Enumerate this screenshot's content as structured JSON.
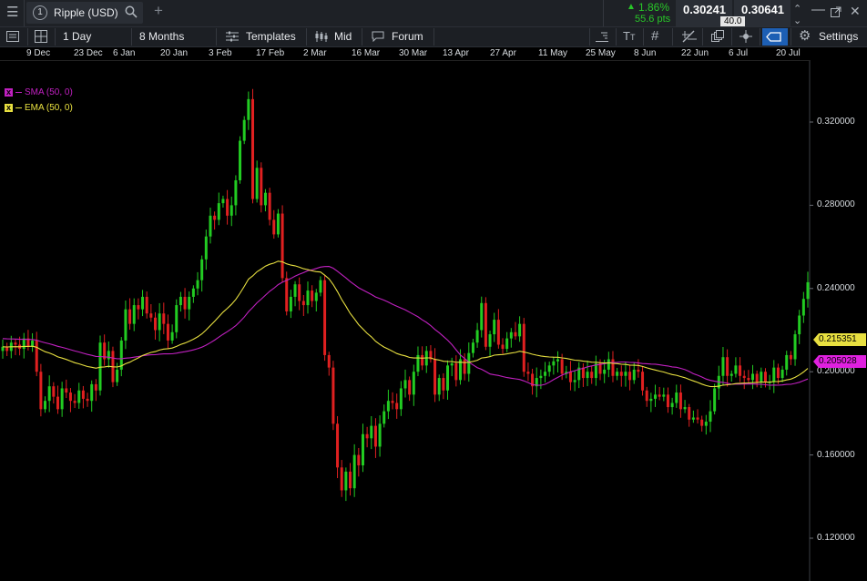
{
  "topbar": {
    "instrument_number": "1",
    "instrument": "Ripple (USD)",
    "change_pct": "1.86%",
    "change_pts": "55.6 pts",
    "bid": "0.30241",
    "ask": "0.30641",
    "spread": "40.0"
  },
  "toolbar": {
    "interval": "1 Day",
    "range": "8 Months",
    "templates": "Templates",
    "price_type": "Mid",
    "forum": "Forum",
    "settings": "Settings"
  },
  "dates": [
    "9 Dec",
    "23 Dec",
    "6 Jan",
    "20 Jan",
    "3 Feb",
    "17 Feb",
    "2 Mar",
    "16 Mar",
    "30 Mar",
    "13 Apr",
    "27 Apr",
    "11 May",
    "25 May",
    "8 Jun",
    "22 Jun",
    "6 Jul",
    "20 Jul"
  ],
  "legend": [
    {
      "name": "SMA (50, 0)",
      "color": "#c020c0"
    },
    {
      "name": "EMA (50, 0)",
      "color": "#e8e040"
    }
  ],
  "value_tags": {
    "ema": "0.215351",
    "sma": "0.205028"
  },
  "chart_data": {
    "type": "candlestick",
    "y_ticks": [
      "0.120000",
      "0.160000",
      "0.200000",
      "0.240000",
      "0.280000",
      "0.320000"
    ],
    "ylim": [
      0.104,
      0.345
    ],
    "x_range": [
      "9 Dec",
      "20 Jul"
    ],
    "grid": false,
    "up_color": "#22cc22",
    "down_color": "#e02020",
    "legend_position": "top-left",
    "close": [
      0.212,
      0.21,
      0.214,
      0.213,
      0.211,
      0.216,
      0.212,
      0.215,
      0.2,
      0.182,
      0.186,
      0.193,
      0.188,
      0.182,
      0.192,
      0.19,
      0.186,
      0.185,
      0.191,
      0.187,
      0.186,
      0.194,
      0.191,
      0.214,
      0.206,
      0.21,
      0.195,
      0.201,
      0.215,
      0.23,
      0.223,
      0.232,
      0.23,
      0.236,
      0.228,
      0.226,
      0.22,
      0.228,
      0.223,
      0.215,
      0.219,
      0.232,
      0.236,
      0.23,
      0.236,
      0.24,
      0.244,
      0.254,
      0.265,
      0.275,
      0.273,
      0.281,
      0.283,
      0.275,
      0.28,
      0.292,
      0.311,
      0.321,
      0.331,
      0.283,
      0.298,
      0.28,
      0.286,
      0.273,
      0.266,
      0.276,
      0.245,
      0.229,
      0.236,
      0.242,
      0.234,
      0.232,
      0.239,
      0.234,
      0.238,
      0.244,
      0.208,
      0.202,
      0.175,
      0.154,
      0.143,
      0.152,
      0.144,
      0.16,
      0.155,
      0.17,
      0.168,
      0.174,
      0.164,
      0.175,
      0.181,
      0.186,
      0.185,
      0.182,
      0.192,
      0.196,
      0.189,
      0.2,
      0.208,
      0.203,
      0.21,
      0.206,
      0.189,
      0.197,
      0.191,
      0.203,
      0.204,
      0.196,
      0.206,
      0.199,
      0.209,
      0.214,
      0.22,
      0.233,
      0.212,
      0.218,
      0.225,
      0.213,
      0.211,
      0.216,
      0.219,
      0.217,
      0.223,
      0.2,
      0.199,
      0.193,
      0.197,
      0.198,
      0.2,
      0.203,
      0.205,
      0.206,
      0.199,
      0.2,
      0.195,
      0.196,
      0.202,
      0.197,
      0.2,
      0.197,
      0.204,
      0.199,
      0.201,
      0.206,
      0.198,
      0.2,
      0.198,
      0.2,
      0.196,
      0.201,
      0.2,
      0.191,
      0.186,
      0.187,
      0.189,
      0.188,
      0.189,
      0.183,
      0.185,
      0.19,
      0.182,
      0.183,
      0.177,
      0.178,
      0.177,
      0.174,
      0.176,
      0.181,
      0.192,
      0.198,
      0.207,
      0.198,
      0.199,
      0.203,
      0.198,
      0.197,
      0.196,
      0.199,
      0.195,
      0.2,
      0.195,
      0.195,
      0.202,
      0.197,
      0.201,
      0.208,
      0.206,
      0.218,
      0.227,
      0.235,
      0.243
    ]
  }
}
